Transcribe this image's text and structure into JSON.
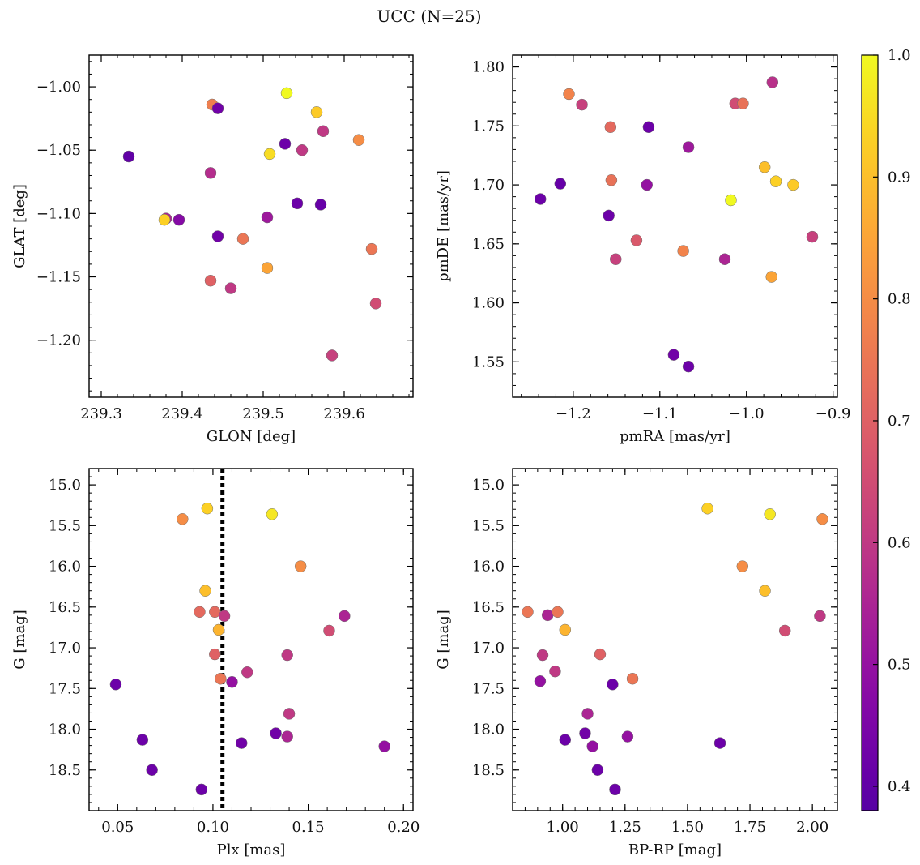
{
  "title": "UCC (N=25)",
  "colorbar": {
    "range": [
      0.38,
      1.0
    ],
    "ticks": [
      0.4,
      0.5,
      0.6,
      0.7,
      0.8,
      0.9,
      1.0
    ],
    "tick_labels": [
      "0.4",
      "0.5",
      "0.6",
      "0.7",
      "0.8",
      "0.9",
      "1.0"
    ],
    "colormap": "plasma"
  },
  "chart_data": [
    {
      "type": "scatter",
      "id": "glon-glat",
      "xlabel": "GLON [deg]",
      "ylabel": "GLAT [deg]",
      "xlim": [
        239.285,
        239.685
      ],
      "ylim": [
        -1.245,
        -0.975
      ],
      "xticks": [
        239.3,
        239.4,
        239.5,
        239.6
      ],
      "xtick_labels": [
        "239.3",
        "239.4",
        "239.5",
        "239.6"
      ],
      "yticks": [
        -1.0,
        -1.05,
        -1.1,
        -1.15,
        -1.2
      ],
      "ytick_labels": [
        "−1.00",
        "−1.05",
        "−1.10",
        "−1.15",
        "−1.20"
      ],
      "x": [
        239.529,
        239.437,
        239.444,
        239.566,
        239.574,
        239.334,
        239.618,
        239.527,
        239.508,
        239.548,
        239.435,
        239.542,
        239.571,
        239.38,
        239.378,
        239.396,
        239.505,
        239.444,
        239.475,
        239.634,
        239.505,
        239.435,
        239.46,
        239.639,
        239.585
      ],
      "y": [
        -1.005,
        -1.014,
        -1.017,
        -1.02,
        -1.035,
        -1.055,
        -1.042,
        -1.045,
        -1.053,
        -1.05,
        -1.068,
        -1.092,
        -1.093,
        -1.104,
        -1.105,
        -1.105,
        -1.103,
        -1.118,
        -1.12,
        -1.128,
        -1.143,
        -1.153,
        -1.159,
        -1.171,
        -1.212
      ],
      "color_values": [
        1.0,
        0.77,
        0.43,
        0.92,
        0.6,
        0.4,
        0.8,
        0.42,
        0.95,
        0.6,
        0.57,
        0.42,
        0.41,
        0.55,
        0.93,
        0.47,
        0.52,
        0.43,
        0.75,
        0.75,
        0.85,
        0.7,
        0.6,
        0.65,
        0.62
      ]
    },
    {
      "type": "scatter",
      "id": "pmra-pmde",
      "xlabel": "pmRA [mas/yr]",
      "ylabel": "pmDE [mas/yr]",
      "xlim": [
        -1.27,
        -0.895
      ],
      "ylim": [
        1.52,
        1.81
      ],
      "xticks": [
        -1.2,
        -1.1,
        -1.0,
        -0.9
      ],
      "xtick_labels": [
        "−1.2",
        "−1.1",
        "−1.0",
        "−0.9"
      ],
      "yticks": [
        1.55,
        1.6,
        1.65,
        1.7,
        1.75,
        1.8
      ],
      "ytick_labels": [
        "1.55",
        "1.60",
        "1.65",
        "1.70",
        "1.75",
        "1.80"
      ],
      "x": [
        -1.205,
        -1.19,
        -1.157,
        -1.113,
        -1.067,
        -1.013,
        -1.004,
        -0.97,
        -0.979,
        -0.966,
        -0.946,
        -1.018,
        -1.238,
        -1.215,
        -1.156,
        -1.115,
        -1.159,
        -1.127,
        -1.151,
        -1.073,
        -1.025,
        -0.971,
        -0.924,
        -1.084,
        -1.067
      ],
      "y": [
        1.777,
        1.768,
        1.749,
        1.749,
        1.732,
        1.769,
        1.769,
        1.787,
        1.715,
        1.703,
        1.7,
        1.687,
        1.688,
        1.701,
        1.704,
        1.7,
        1.674,
        1.653,
        1.637,
        1.644,
        1.637,
        1.622,
        1.656,
        1.556,
        1.546
      ],
      "color_values": [
        0.78,
        0.62,
        0.72,
        0.42,
        0.52,
        0.65,
        0.74,
        0.58,
        0.9,
        0.93,
        0.92,
        1.0,
        0.42,
        0.41,
        0.74,
        0.5,
        0.42,
        0.68,
        0.62,
        0.78,
        0.55,
        0.85,
        0.62,
        0.43,
        0.42
      ]
    },
    {
      "type": "scatter",
      "id": "plx-g",
      "xlabel": "Plx [mas]",
      "ylabel": "G [mag]",
      "xlim": [
        0.035,
        0.205
      ],
      "ylim": [
        19.0,
        14.8
      ],
      "inverted_y": true,
      "vertical_line": {
        "x": 0.105,
        "style": "dotted",
        "color": "#000000"
      },
      "xticks": [
        0.05,
        0.1,
        0.15,
        0.2
      ],
      "xtick_labels": [
        "0.05",
        "0.10",
        "0.15",
        "0.20"
      ],
      "yticks": [
        15.0,
        15.5,
        16.0,
        16.5,
        17.0,
        17.5,
        18.0,
        18.5
      ],
      "ytick_labels": [
        "15.0",
        "15.5",
        "16.0",
        "16.5",
        "17.0",
        "17.5",
        "18.0",
        "18.5"
      ],
      "x": [
        0.097,
        0.084,
        0.131,
        0.146,
        0.096,
        0.093,
        0.101,
        0.106,
        0.103,
        0.169,
        0.161,
        0.101,
        0.139,
        0.104,
        0.118,
        0.11,
        0.049,
        0.14,
        0.133,
        0.139,
        0.19,
        0.063,
        0.115,
        0.068,
        0.094
      ],
      "y": [
        15.29,
        15.42,
        15.36,
        16.0,
        16.3,
        16.56,
        16.56,
        16.61,
        16.78,
        16.61,
        16.79,
        17.08,
        17.09,
        17.38,
        17.3,
        17.42,
        17.45,
        17.81,
        18.05,
        18.09,
        18.21,
        18.13,
        18.17,
        18.5,
        18.74
      ],
      "color_values": [
        0.93,
        0.8,
        0.97,
        0.8,
        0.9,
        0.72,
        0.72,
        0.6,
        0.88,
        0.55,
        0.65,
        0.7,
        0.6,
        0.75,
        0.6,
        0.5,
        0.42,
        0.6,
        0.43,
        0.55,
        0.5,
        0.42,
        0.43,
        0.42,
        0.42
      ]
    },
    {
      "type": "scatter",
      "id": "bprp-g",
      "xlabel": "BP-RP [mag]",
      "ylabel": "G [mag]",
      "xlim": [
        0.8,
        2.1
      ],
      "ylim": [
        19.0,
        14.8
      ],
      "inverted_y": true,
      "xticks": [
        1.0,
        1.25,
        1.5,
        1.75,
        2.0
      ],
      "xtick_labels": [
        "1.00",
        "1.25",
        "1.50",
        "1.75",
        "2.00"
      ],
      "yticks": [
        15.0,
        15.5,
        16.0,
        16.5,
        17.0,
        17.5,
        18.0,
        18.5
      ],
      "ytick_labels": [
        "15.0",
        "15.5",
        "16.0",
        "16.5",
        "17.0",
        "17.5",
        "18.0",
        "18.5"
      ],
      "x": [
        1.58,
        1.83,
        2.04,
        1.72,
        1.81,
        0.86,
        0.94,
        0.98,
        1.01,
        2.03,
        1.89,
        0.92,
        1.15,
        0.97,
        1.28,
        0.91,
        1.2,
        1.1,
        1.09,
        1.26,
        1.12,
        1.01,
        1.63,
        1.14,
        1.21
      ],
      "y": [
        15.29,
        15.36,
        15.42,
        16.0,
        16.3,
        16.56,
        16.6,
        16.56,
        16.78,
        16.61,
        16.79,
        17.09,
        17.08,
        17.29,
        17.38,
        17.41,
        17.45,
        17.81,
        18.05,
        18.09,
        18.21,
        18.13,
        18.17,
        18.5,
        18.74
      ],
      "color_values": [
        0.93,
        0.97,
        0.8,
        0.8,
        0.9,
        0.75,
        0.55,
        0.75,
        0.88,
        0.6,
        0.65,
        0.6,
        0.7,
        0.6,
        0.75,
        0.5,
        0.42,
        0.55,
        0.43,
        0.5,
        0.5,
        0.42,
        0.42,
        0.42,
        0.42
      ]
    }
  ]
}
